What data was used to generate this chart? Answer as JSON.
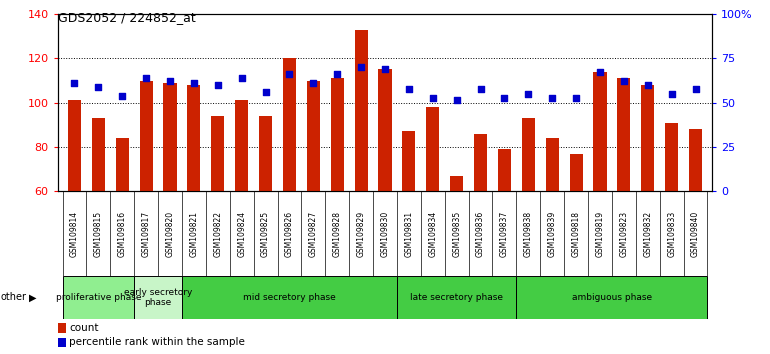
{
  "title": "GDS2052 / 224852_at",
  "samples": [
    "GSM109814",
    "GSM109815",
    "GSM109816",
    "GSM109817",
    "GSM109820",
    "GSM109821",
    "GSM109822",
    "GSM109824",
    "GSM109825",
    "GSM109826",
    "GSM109827",
    "GSM109828",
    "GSM109829",
    "GSM109830",
    "GSM109831",
    "GSM109834",
    "GSM109835",
    "GSM109836",
    "GSM109837",
    "GSM109838",
    "GSM109839",
    "GSM109818",
    "GSM109819",
    "GSM109823",
    "GSM109832",
    "GSM109833",
    "GSM109840"
  ],
  "counts": [
    101,
    93,
    84,
    110,
    109,
    108,
    94,
    101,
    94,
    120,
    110,
    111,
    133,
    115,
    87,
    98,
    67,
    86,
    79,
    93,
    84,
    77,
    114,
    111,
    108,
    91,
    88
  ],
  "percentile_display": [
    109,
    107,
    103,
    111,
    110,
    109,
    108,
    111,
    105,
    113,
    109,
    113,
    116,
    115,
    106,
    102,
    101,
    106,
    102,
    104,
    102,
    102,
    114,
    110,
    108,
    104,
    106
  ],
  "phases": [
    {
      "label": "proliferative phase",
      "start": 0,
      "end": 3,
      "color": "#90EE90"
    },
    {
      "label": "early secretory\nphase",
      "start": 3,
      "end": 5,
      "color": "#c8f5c8"
    },
    {
      "label": "mid secretory phase",
      "start": 5,
      "end": 14,
      "color": "#55dd55"
    },
    {
      "label": "late secretory phase",
      "start": 14,
      "end": 19,
      "color": "#55dd55"
    },
    {
      "label": "ambiguous phase",
      "start": 19,
      "end": 27,
      "color": "#55dd55"
    }
  ],
  "bar_color": "#cc2200",
  "dot_color": "#0000cc",
  "ylim_left": [
    60,
    140
  ],
  "ylim_right": [
    0,
    100
  ],
  "yticks_left": [
    60,
    80,
    100,
    120,
    140
  ],
  "yticks_right": [
    0,
    25,
    50,
    75,
    100
  ],
  "yticklabels_right": [
    "0",
    "25",
    "50",
    "75",
    "100%"
  ],
  "tick_bg_color": "#cccccc",
  "plot_bg": "#ffffff",
  "fig_bg": "#ffffff"
}
